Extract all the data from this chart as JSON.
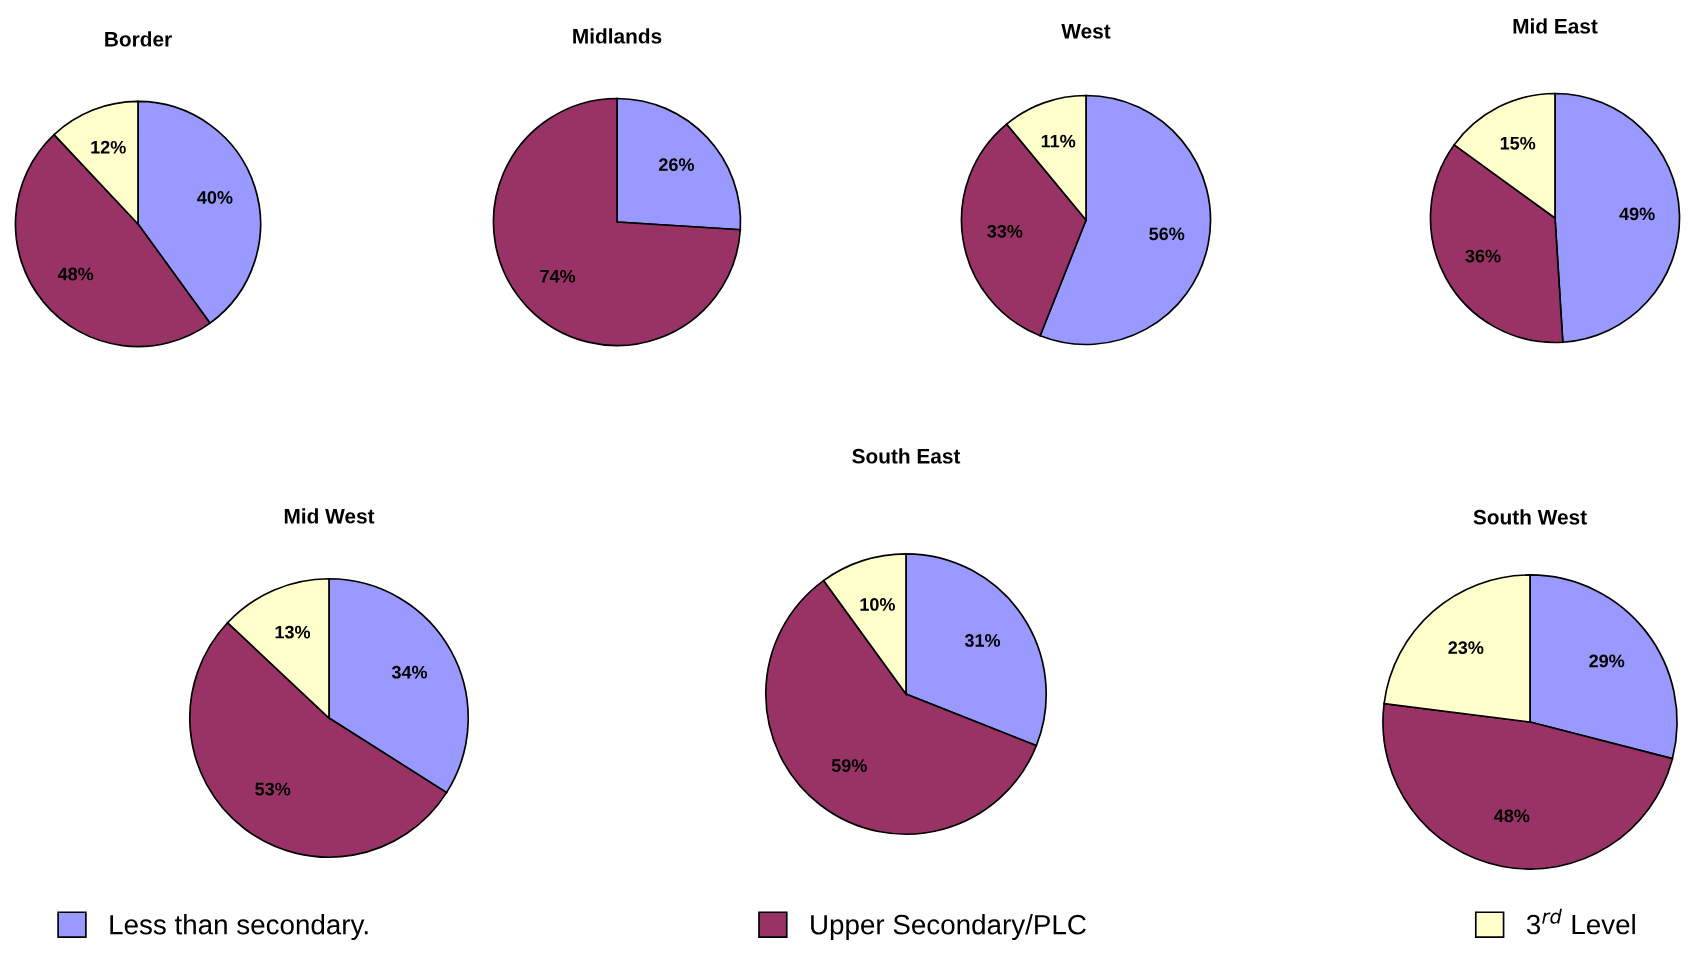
{
  "chart_data": [
    {
      "type": "pie",
      "title": "Border",
      "categories": [
        "Less than secondary.",
        "Upper Secondary/PLC",
        "3$^{rd}$ Level"
      ],
      "values": [
        40,
        48,
        12
      ],
      "value_labels": [
        "40%",
        "48%",
        "12%"
      ],
      "colors": [
        "#9999ff",
        "#993366",
        "#ffffcc"
      ],
      "legend": "bottom"
    },
    {
      "type": "pie",
      "title": "Midlands",
      "categories": [
        null,
        null
      ],
      "values": [
        26,
        74
      ],
      "value_labels": [
        "26%",
        "74%"
      ],
      "colors": [
        "#9999ff",
        "#993366"
      ]
    },
    {
      "type": "pie",
      "title": "West",
      "categories": [
        null,
        null,
        null
      ],
      "values": [
        56,
        33,
        11
      ],
      "value_labels": [
        "56%",
        "33%",
        "11%"
      ],
      "colors": [
        "#9999ff",
        "#993366",
        "#ffffcc"
      ]
    },
    {
      "type": "pie",
      "title": "Mid East",
      "categories": [
        null,
        null,
        null
      ],
      "values": [
        49,
        36,
        15
      ],
      "value_labels": [
        "49%",
        "36%",
        "15%"
      ],
      "colors": [
        "#9999ff",
        "#993366",
        "#ffffcc"
      ]
    },
    {
      "type": "pie",
      "title": "Mid West",
      "categories": [
        null,
        null,
        null
      ],
      "values": [
        34,
        53,
        13
      ],
      "value_labels": [
        "34%",
        "53%",
        "13%"
      ],
      "colors": [
        "#9999ff",
        "#993366",
        "#ffffcc"
      ]
    },
    {
      "type": "pie",
      "title": "South East",
      "categories": [
        null,
        null,
        null
      ],
      "values": [
        31,
        59,
        10
      ],
      "value_labels": [
        "31%",
        "59%",
        "10%"
      ],
      "colors": [
        "#9999ff",
        "#993366",
        "#ffffcc"
      ]
    },
    {
      "type": "pie",
      "title": "South West",
      "categories": [
        null,
        null,
        null
      ],
      "values": [
        29,
        48,
        23
      ],
      "value_labels": [
        "29%",
        "48%",
        "23%"
      ],
      "colors": [
        "#9999ff",
        "#993366",
        "#ffffcc"
      ]
    }
  ]
}
